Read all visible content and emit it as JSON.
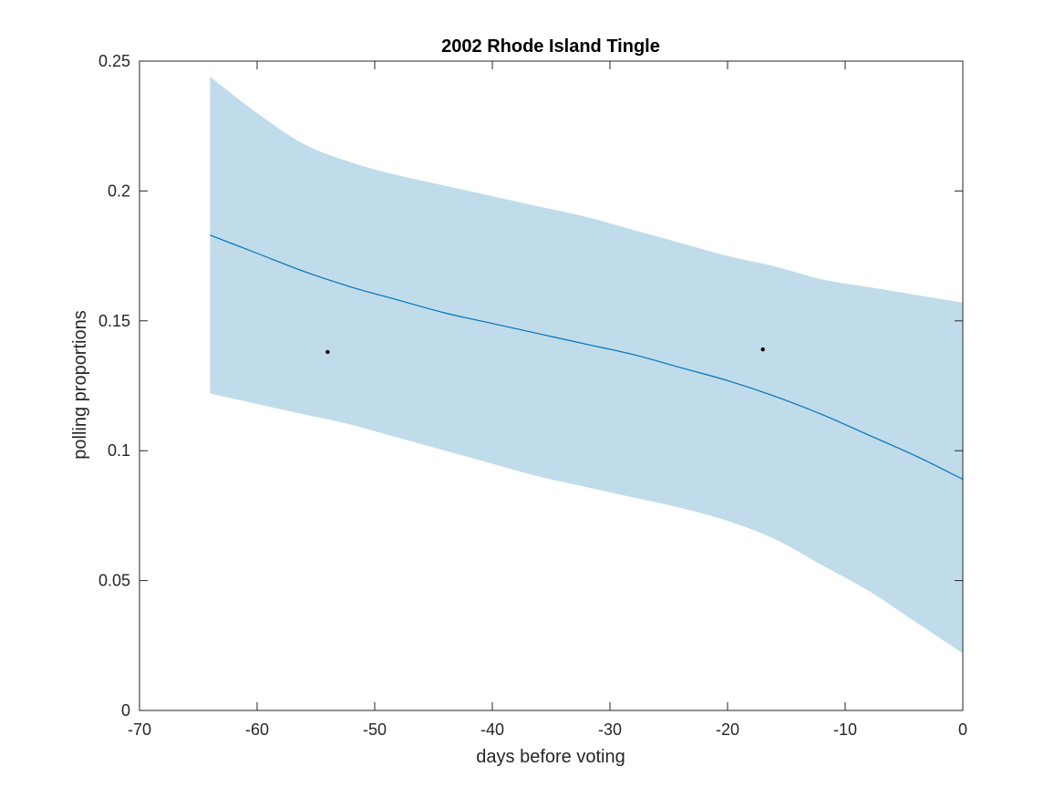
{
  "chart_data": {
    "type": "line",
    "title": "2002 Rhode Island Tingle",
    "xlabel": "days before voting",
    "ylabel": "polling proportions",
    "xlim": [
      -70,
      0
    ],
    "ylim": [
      0,
      0.25
    ],
    "xticks": [
      -70,
      -60,
      -50,
      -40,
      -30,
      -20,
      -10,
      0
    ],
    "xtick_labels": [
      "-70",
      "-60",
      "-50",
      "-40",
      "-30",
      "-20",
      "-10",
      "0"
    ],
    "yticks": [
      0,
      0.05,
      0.1,
      0.15,
      0.2,
      0.25
    ],
    "ytick_labels": [
      "0",
      "0.05",
      "0.1",
      "0.15",
      "0.2",
      "0.25"
    ],
    "grid": false,
    "colors": {
      "band": "#c0dcea",
      "line": "#0072bd",
      "points": "#000000",
      "axes": "#262626"
    },
    "series": [
      {
        "name": "trend",
        "x": [
          -64,
          -60,
          -56,
          -52,
          -48,
          -44,
          -40,
          -36,
          -32,
          -28,
          -24,
          -20,
          -16,
          -12,
          -8,
          -4,
          0
        ],
        "y": [
          0.183,
          0.176,
          0.169,
          0.163,
          0.158,
          0.153,
          0.149,
          0.145,
          0.141,
          0.137,
          0.132,
          0.127,
          0.121,
          0.114,
          0.106,
          0.098,
          0.089
        ],
        "lower": [
          0.122,
          0.118,
          0.114,
          0.11,
          0.105,
          0.1,
          0.095,
          0.09,
          0.086,
          0.082,
          0.078,
          0.073,
          0.066,
          0.056,
          0.046,
          0.034,
          0.022
        ],
        "upper": [
          0.244,
          0.23,
          0.218,
          0.211,
          0.206,
          0.202,
          0.198,
          0.194,
          0.19,
          0.185,
          0.18,
          0.175,
          0.171,
          0.166,
          0.163,
          0.16,
          0.157
        ]
      }
    ],
    "points": [
      {
        "x": -54,
        "y": 0.138
      },
      {
        "x": -17,
        "y": 0.139
      }
    ]
  }
}
